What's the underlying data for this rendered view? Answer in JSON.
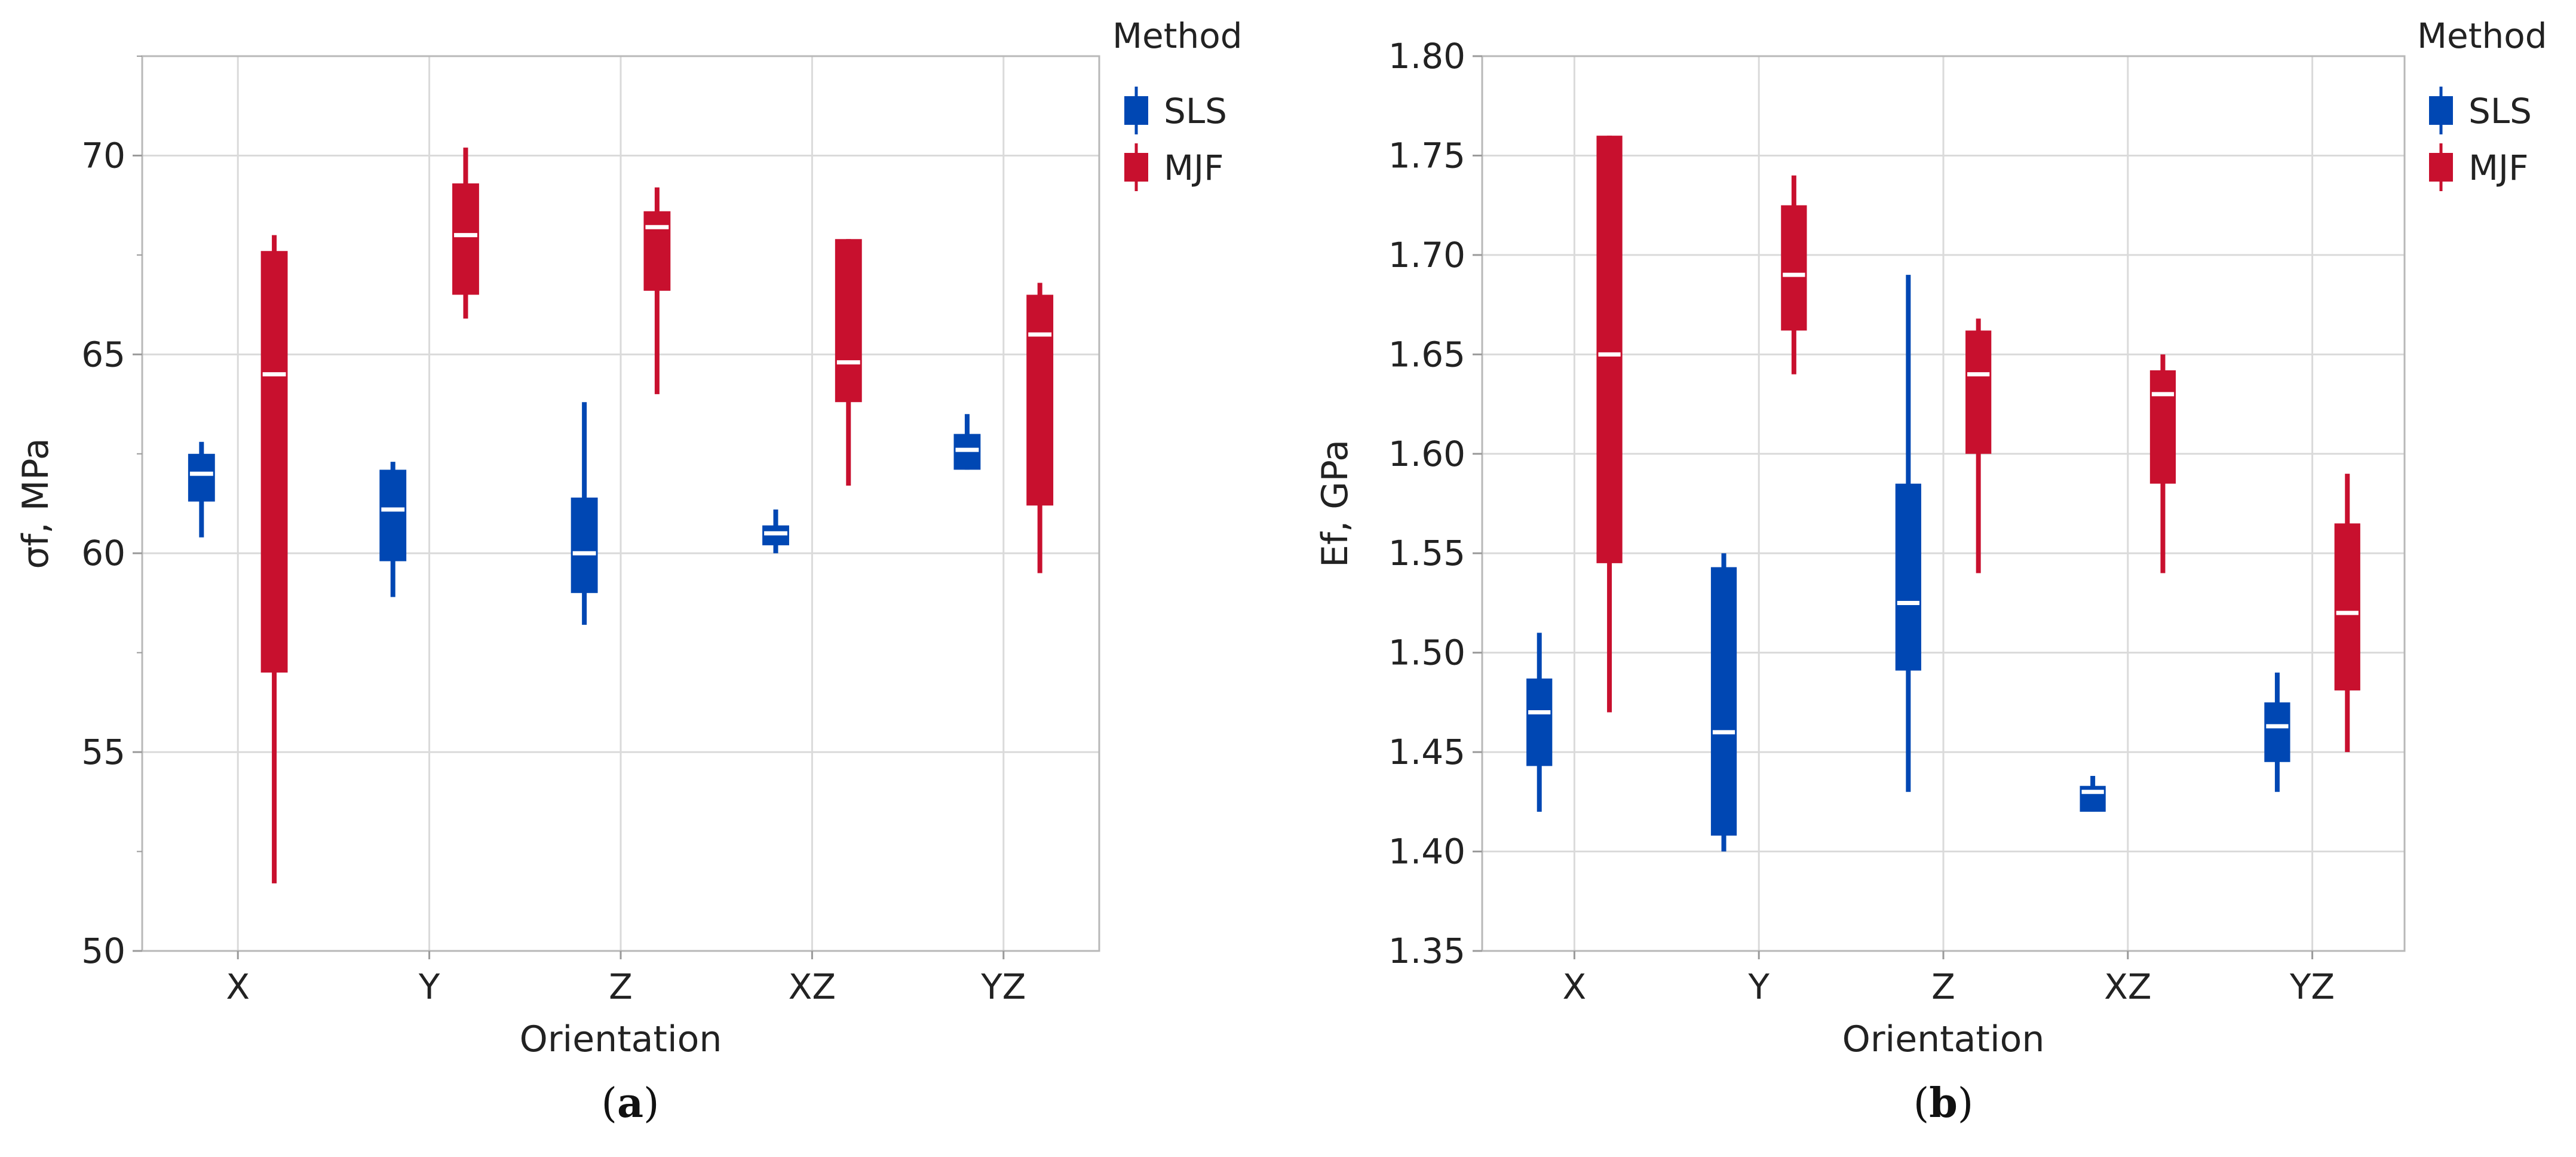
{
  "chart_data": [
    {
      "type": "box",
      "panel": "a",
      "caption_open": "(",
      "caption_letter": "a",
      "caption_close": ")",
      "xlabel": "Orientation",
      "ylabel": "σf, MPa",
      "ylim": [
        50,
        72.5
      ],
      "yticks": [
        50,
        55,
        60,
        65,
        70
      ],
      "ytick_labels": [
        "50",
        "55",
        "60",
        "65",
        "70"
      ],
      "minor_step": 2.5,
      "categories": [
        "X",
        "Y",
        "Z",
        "XZ",
        "YZ"
      ],
      "legend": {
        "title": "Method",
        "position": "top-right-outside"
      },
      "series": [
        {
          "name": "SLS",
          "color": "#0047b3",
          "boxes": [
            {
              "min": 60.4,
              "q1": 61.3,
              "median": 62.0,
              "q3": 62.5,
              "max": 62.8
            },
            {
              "min": 58.9,
              "q1": 59.8,
              "median": 61.1,
              "q3": 62.1,
              "max": 62.3
            },
            {
              "min": 58.2,
              "q1": 59.0,
              "median": 60.0,
              "q3": 61.4,
              "max": 63.8
            },
            {
              "min": 60.0,
              "q1": 60.2,
              "median": 60.5,
              "q3": 60.7,
              "max": 61.1
            },
            {
              "min": 62.1,
              "q1": 62.1,
              "median": 62.6,
              "q3": 63.0,
              "max": 63.5
            }
          ]
        },
        {
          "name": "MJF",
          "color": "#c8102e",
          "boxes": [
            {
              "min": 51.7,
              "q1": 57.0,
              "median": 64.5,
              "q3": 67.6,
              "max": 68.0
            },
            {
              "min": 65.9,
              "q1": 66.5,
              "median": 68.0,
              "q3": 69.3,
              "max": 70.2
            },
            {
              "min": 64.0,
              "q1": 66.6,
              "median": 68.2,
              "q3": 68.6,
              "max": 69.2
            },
            {
              "min": 61.7,
              "q1": 63.8,
              "median": 64.8,
              "q3": 67.9,
              "max": 67.9
            },
            {
              "min": 59.5,
              "q1": 61.2,
              "median": 65.5,
              "q3": 66.5,
              "max": 66.8
            }
          ]
        }
      ]
    },
    {
      "type": "box",
      "panel": "b",
      "caption_open": "(",
      "caption_letter": "b",
      "caption_close": ")",
      "xlabel": "Orientation",
      "ylabel": "Ef, GPa",
      "ylim": [
        1.35,
        1.8
      ],
      "yticks": [
        1.35,
        1.4,
        1.45,
        1.5,
        1.55,
        1.6,
        1.65,
        1.7,
        1.75,
        1.8
      ],
      "ytick_labels": [
        "1.35",
        "1.40",
        "1.45",
        "1.50",
        "1.55",
        "1.60",
        "1.65",
        "1.70",
        "1.75",
        "1.80"
      ],
      "minor_step": null,
      "categories": [
        "X",
        "Y",
        "Z",
        "XZ",
        "YZ"
      ],
      "legend": {
        "title": "Method",
        "position": "top-right-outside"
      },
      "series": [
        {
          "name": "SLS",
          "color": "#0047b3",
          "boxes": [
            {
              "min": 1.42,
              "q1": 1.443,
              "median": 1.47,
              "q3": 1.487,
              "max": 1.51
            },
            {
              "min": 1.4,
              "q1": 1.408,
              "median": 1.46,
              "q3": 1.543,
              "max": 1.55
            },
            {
              "min": 1.43,
              "q1": 1.491,
              "median": 1.525,
              "q3": 1.585,
              "max": 1.69
            },
            {
              "min": 1.42,
              "q1": 1.42,
              "median": 1.43,
              "q3": 1.433,
              "max": 1.438
            },
            {
              "min": 1.43,
              "q1": 1.445,
              "median": 1.463,
              "q3": 1.475,
              "max": 1.49
            }
          ]
        },
        {
          "name": "MJF",
          "color": "#c8102e",
          "boxes": [
            {
              "min": 1.47,
              "q1": 1.545,
              "median": 1.65,
              "q3": 1.76,
              "max": 1.76
            },
            {
              "min": 1.64,
              "q1": 1.662,
              "median": 1.69,
              "q3": 1.725,
              "max": 1.74
            },
            {
              "min": 1.54,
              "q1": 1.6,
              "median": 1.64,
              "q3": 1.662,
              "max": 1.668
            },
            {
              "min": 1.54,
              "q1": 1.585,
              "median": 1.63,
              "q3": 1.642,
              "max": 1.65
            },
            {
              "min": 1.45,
              "q1": 1.481,
              "median": 1.52,
              "q3": 1.565,
              "max": 1.59
            }
          ]
        }
      ]
    }
  ]
}
